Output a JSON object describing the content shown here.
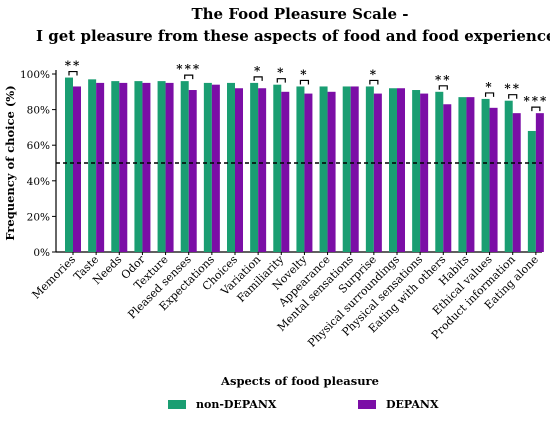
{
  "chart_data": {
    "type": "bar",
    "title": "The Food Pleasure Scale -",
    "subtitle": "I get pleasure from these aspects of food and food experiences",
    "xlabel": "Aspects of food pleasure",
    "ylabel": "Frequency of choice (%)",
    "ylim": [
      0,
      100
    ],
    "yticks": [
      "0%",
      "20%",
      "40%",
      "60%",
      "80%",
      "100%"
    ],
    "reference_line": 50,
    "legend_position": "bottom",
    "categories": [
      "Memories",
      "Taste",
      "Needs",
      "Odor",
      "Texture",
      "Pleased senses",
      "Expectations",
      "Choices",
      "Variation",
      "Familiarity",
      "Novelty",
      "Appearance",
      "Mental sensations",
      "Surprise",
      "Physical surroundings",
      "Physical sensations",
      "Eating with others",
      "Habits",
      "Ethical values",
      "Product information",
      "Eating alone"
    ],
    "series": [
      {
        "name": "non-DEPANX",
        "color": "#1a9e72",
        "values": [
          98,
          97,
          96,
          96,
          96,
          96,
          95,
          95,
          95,
          94,
          93,
          93,
          93,
          93,
          92,
          91,
          90,
          87,
          86,
          85,
          68
        ]
      },
      {
        "name": "DEPANX",
        "color": "#7b0ea6",
        "values": [
          93,
          95,
          95,
          95,
          95,
          91,
          94,
          92,
          92,
          90,
          89,
          90,
          93,
          89,
          92,
          89,
          83,
          87,
          81,
          78,
          78
        ]
      }
    ],
    "significance": [
      {
        "category": "Memories",
        "stars": "**"
      },
      {
        "category": "Pleased senses",
        "stars": "***"
      },
      {
        "category": "Variation",
        "stars": "*"
      },
      {
        "category": "Familiarity",
        "stars": "*"
      },
      {
        "category": "Novelty",
        "stars": "*"
      },
      {
        "category": "Surprise",
        "stars": "*"
      },
      {
        "category": "Eating with others",
        "stars": "**"
      },
      {
        "category": "Ethical values",
        "stars": "*"
      },
      {
        "category": "Product information",
        "stars": "**"
      },
      {
        "category": "Eating alone",
        "stars": "***"
      }
    ]
  }
}
